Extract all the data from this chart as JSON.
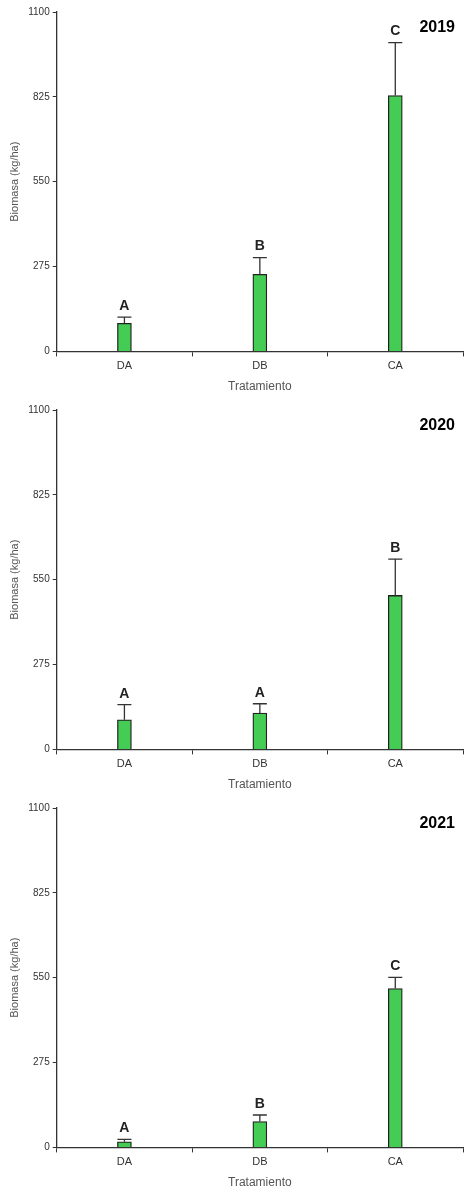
{
  "chart_data": [
    {
      "type": "bar",
      "title": "2019",
      "xlabel": "Tratamiento",
      "ylabel": "Biomasa (kg/ha)",
      "categories": [
        "DA",
        "DB",
        "CA"
      ],
      "values": [
        91,
        250,
        829
      ],
      "errors": [
        [
          91,
          111
        ],
        [
          250,
          304
        ],
        [
          829,
          1001
        ]
      ],
      "color": "#44cc55",
      "ylim": [
        0,
        1100
      ],
      "yticks": [
        0,
        275,
        550,
        825,
        1100
      ],
      "grid": false,
      "legend": false,
      "annotations": [
        {
          "text": "A",
          "x": "DA",
          "y": 111
        },
        {
          "text": "B",
          "x": "DB",
          "y": 304
        },
        {
          "text": "C",
          "x": "CA",
          "y": 1001
        }
      ]
    },
    {
      "type": "bar",
      "title": "2020",
      "xlabel": "Tratamiento",
      "ylabel": "Biomasa (kg/ha)",
      "categories": [
        "DA",
        "DB",
        "CA"
      ],
      "values": [
        96,
        118,
        499
      ],
      "errors": [
        [
          96,
          145
        ],
        [
          118,
          148
        ],
        [
          499,
          617
        ]
      ],
      "color": "#44cc55",
      "ylim": [
        0,
        1100
      ],
      "yticks": [
        0,
        275,
        550,
        825,
        1100
      ],
      "grid": false,
      "legend": false,
      "annotations": [
        {
          "text": "A",
          "x": "DA",
          "y": 145
        },
        {
          "text": "A",
          "x": "DB",
          "y": 148
        },
        {
          "text": "B",
          "x": "CA",
          "y": 617
        }
      ]
    },
    {
      "type": "bar",
      "title": "2021",
      "xlabel": "Tratamiento",
      "ylabel": "Biomasa (kg/ha)",
      "categories": [
        "DA",
        "DB",
        "CA"
      ],
      "values": [
        18,
        84,
        515
      ],
      "errors": [
        [
          18,
          26
        ],
        [
          84,
          105
        ],
        [
          515,
          551
        ]
      ],
      "color": "#44cc55",
      "ylim": [
        0,
        1100
      ],
      "yticks": [
        0,
        275,
        550,
        825,
        1100
      ],
      "grid": false,
      "legend": false,
      "annotations": [
        {
          "text": "A",
          "x": "DA",
          "y": 26
        },
        {
          "text": "B",
          "x": "DB",
          "y": 105
        },
        {
          "text": "C",
          "x": "CA",
          "y": 551
        }
      ]
    }
  ]
}
